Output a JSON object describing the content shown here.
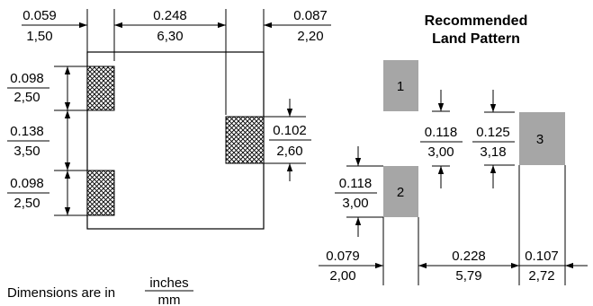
{
  "title": [
    "Recommended",
    "Land Pattern"
  ],
  "legend": {
    "prefix": "Dimensions are in",
    "num": "inches",
    "den": "mm"
  },
  "package": {
    "left_offset": {
      "in": "0.059",
      "mm": "1,50"
    },
    "pad3_span": {
      "in": "0.248",
      "mm": "6,30"
    },
    "right_offset": {
      "in": "0.087",
      "mm": "2,20"
    },
    "pad1_height": {
      "in": "0.098",
      "mm": "2,50"
    },
    "pad_gap": {
      "in": "0.138",
      "mm": "3,50"
    },
    "pad2_height": {
      "in": "0.098",
      "mm": "2,50"
    },
    "pad3_height": {
      "in": "0.102",
      "mm": "2,60"
    }
  },
  "land_pattern": {
    "pads": [
      "1",
      "2",
      "3"
    ],
    "pad_gap_12": {
      "in": "0.118",
      "mm": "3,00"
    },
    "pad_offset_3": {
      "in": "0.125",
      "mm": "3,18"
    },
    "pad2_height": {
      "in": "0.118",
      "mm": "3,00"
    },
    "pad_width_12": {
      "in": "0.079",
      "mm": "2,00"
    },
    "pad_spacing": {
      "in": "0.228",
      "mm": "5,79"
    },
    "pad3_width": {
      "in": "0.107",
      "mm": "2,72"
    }
  },
  "colors": {
    "pad_fill": "#a6a6a6",
    "line": "#000000"
  }
}
